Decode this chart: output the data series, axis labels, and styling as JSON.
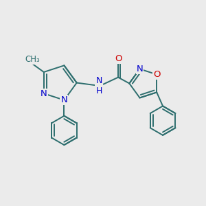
{
  "bg_color": "#ebebeb",
  "bond_color": "#2d6e6e",
  "bond_width": 1.4,
  "atom_colors": {
    "N": "#0000cc",
    "O": "#cc0000",
    "C": "#2d6e6e"
  },
  "font_size": 9.5
}
